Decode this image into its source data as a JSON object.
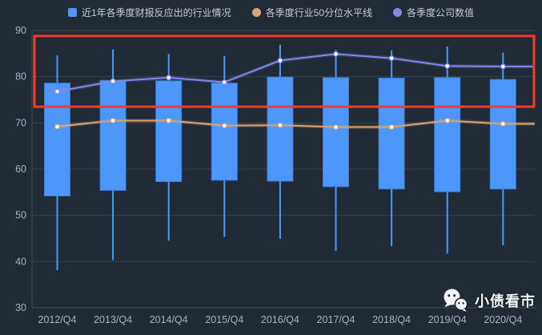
{
  "legend": {
    "items": [
      {
        "label": "近1年各季度财报反应出的行业情况",
        "marker": "square",
        "color": "#4d97fb"
      },
      {
        "label": "各季度行业50分位水平线",
        "marker": "circle",
        "color": "#d9a470"
      },
      {
        "label": "各季度公司数值",
        "marker": "circle",
        "color": "#8287ee"
      }
    ]
  },
  "watermark": {
    "icon": "wechat-logo-icon",
    "text": "小债看市"
  },
  "colors": {
    "background": "#212b36",
    "grid_line": "#39424f",
    "axis_line": "#424c5c",
    "axis_label": "#a7b1c4",
    "candle": "#4d97fb",
    "candle_border": "#3a7de0",
    "line_median": "#d9a470",
    "line_company": "#8287ee",
    "marker_fill": "#ffffff",
    "annotation_red": "#f5392e",
    "legend_text": "#c6cbd4",
    "watermark_text": "#f2f4f7"
  },
  "chart_data": {
    "type": "candlestick",
    "title": "",
    "categories": [
      "2012/Q4",
      "2013/Q4",
      "2014/Q4",
      "2015/Q4",
      "2016/Q4",
      "2017/Q4",
      "2018/Q4",
      "2019/Q4",
      "2020/Q4"
    ],
    "xlabel": "",
    "ylabel": "",
    "ylim": [
      30,
      90
    ],
    "yticks": [
      30,
      40,
      50,
      60,
      70,
      80,
      90
    ],
    "grid": true,
    "legend_position": "top",
    "series": [
      {
        "name": "近1年各季度财报反应出的行业情况",
        "type": "candlestick",
        "color": "#4d97fb",
        "values": [
          {
            "low": 38.1,
            "box_low": 54.2,
            "box_high": 78.6,
            "high": 84.6
          },
          {
            "low": 40.3,
            "box_low": 55.4,
            "box_high": 79.2,
            "high": 85.9
          },
          {
            "low": 44.5,
            "box_low": 57.3,
            "box_high": 79.1,
            "high": 84.9
          },
          {
            "low": 45.3,
            "box_low": 57.6,
            "box_high": 78.6,
            "high": 84.5
          },
          {
            "low": 44.9,
            "box_low": 57.4,
            "box_high": 79.9,
            "high": 86.9
          },
          {
            "low": 42.3,
            "box_low": 56.2,
            "box_high": 79.8,
            "high": 85.8
          },
          {
            "low": 43.3,
            "box_low": 55.7,
            "box_high": 79.7,
            "high": 85.7
          },
          {
            "low": 41.7,
            "box_low": 55.1,
            "box_high": 79.8,
            "high": 86.5
          },
          {
            "low": 43.5,
            "box_low": 55.7,
            "box_high": 79.4,
            "high": 85.2
          }
        ]
      },
      {
        "name": "各季度行业50分位水平线",
        "type": "line",
        "color": "#d9a470",
        "extend_right": true,
        "values": [
          69.2,
          70.5,
          70.5,
          69.4,
          69.5,
          69.1,
          69.1,
          70.5,
          69.8
        ]
      },
      {
        "name": "各季度公司数值",
        "type": "line",
        "color": "#8287ee",
        "extend_right": true,
        "values": [
          76.8,
          79.0,
          79.8,
          78.8,
          83.5,
          84.9,
          84.0,
          82.3,
          82.2
        ]
      }
    ],
    "annotation": {
      "shape": "rectangle",
      "color": "#f5392e",
      "y_top": 88.8,
      "y_bottom": 73.5,
      "x_span": "full-plot-width"
    }
  }
}
